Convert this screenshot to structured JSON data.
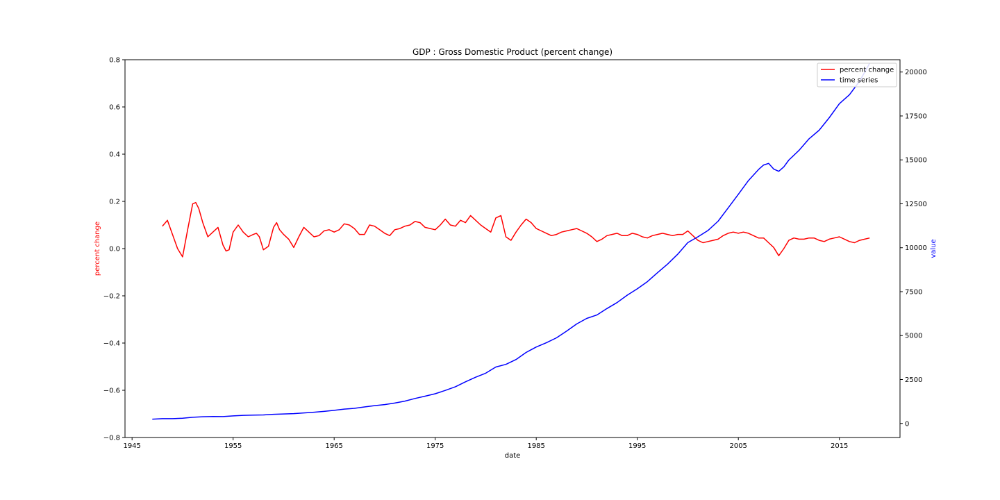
{
  "chart_data": {
    "type": "line",
    "title": "GDP :  Gross Domestic Product (percent change)",
    "xlabel": "date",
    "ylabel_left": "percent change",
    "ylabel_right": "value",
    "xlim": [
      1944.3,
      2021.0
    ],
    "ylim_left": [
      -0.8,
      0.8
    ],
    "ylim_right": [
      -800,
      20700
    ],
    "x_ticks": [
      1945,
      1955,
      1965,
      1975,
      1985,
      1995,
      2005,
      2015
    ],
    "y_left_ticks": [
      -0.8,
      -0.6,
      -0.4,
      -0.2,
      0.0,
      0.2,
      0.4,
      0.6,
      0.8
    ],
    "y_right_ticks": [
      0,
      2500,
      5000,
      7500,
      10000,
      12500,
      15000,
      17500,
      20000
    ],
    "x_tick_labels": [
      "1945",
      "1955",
      "1965",
      "1975",
      "1985",
      "1995",
      "2005",
      "2015"
    ],
    "y_left_tick_labels": [
      "−0.8",
      "−0.6",
      "−0.4",
      "−0.2",
      "0.0",
      "0.2",
      "0.4",
      "0.6",
      "0.8"
    ],
    "y_right_tick_labels": [
      "0",
      "2500",
      "5000",
      "7500",
      "10000",
      "12500",
      "15000",
      "17500",
      "20000"
    ],
    "grid": false,
    "legend_position": "top-right",
    "series": [
      {
        "name": "percent change",
        "axis": "left",
        "color": "#ff0000",
        "x": [
          1948.0,
          1948.5,
          1949.0,
          1949.5,
          1950.0,
          1950.5,
          1951.0,
          1951.3,
          1951.6,
          1952.0,
          1952.5,
          1953.0,
          1953.5,
          1954.0,
          1954.3,
          1954.6,
          1955.0,
          1955.5,
          1956.0,
          1956.5,
          1957.0,
          1957.3,
          1957.6,
          1958.0,
          1958.5,
          1959.0,
          1959.3,
          1959.6,
          1960.0,
          1960.5,
          1961.0,
          1961.5,
          1962.0,
          1962.5,
          1963.0,
          1963.5,
          1964.0,
          1964.5,
          1965.0,
          1965.5,
          1966.0,
          1966.5,
          1967.0,
          1967.5,
          1968.0,
          1968.5,
          1969.0,
          1969.5,
          1970.0,
          1970.5,
          1971.0,
          1971.5,
          1972.0,
          1972.5,
          1973.0,
          1973.5,
          1974.0,
          1974.5,
          1975.0,
          1975.5,
          1976.0,
          1976.5,
          1977.0,
          1977.5,
          1978.0,
          1978.5,
          1979.0,
          1979.5,
          1980.0,
          1980.5,
          1981.0,
          1981.5,
          1982.0,
          1982.5,
          1983.0,
          1983.5,
          1984.0,
          1984.5,
          1985.0,
          1985.5,
          1986.0,
          1986.5,
          1987.0,
          1987.5,
          1988.0,
          1988.5,
          1989.0,
          1989.5,
          1990.0,
          1990.5,
          1991.0,
          1991.5,
          1992.0,
          1992.5,
          1993.0,
          1993.5,
          1994.0,
          1994.5,
          1995.0,
          1995.5,
          1996.0,
          1996.5,
          1997.0,
          1997.5,
          1998.0,
          1998.5,
          1999.0,
          1999.5,
          2000.0,
          2000.5,
          2001.0,
          2001.5,
          2002.0,
          2002.5,
          2003.0,
          2003.5,
          2004.0,
          2004.5,
          2005.0,
          2005.5,
          2006.0,
          2006.5,
          2007.0,
          2007.5,
          2008.0,
          2008.5,
          2009.0,
          2009.5,
          2010.0,
          2010.5,
          2011.0,
          2011.5,
          2012.0,
          2012.5,
          2013.0,
          2013.5,
          2014.0,
          2014.5,
          2015.0,
          2015.5,
          2016.0,
          2016.5,
          2017.0,
          2017.5,
          2018.0
        ],
        "y": [
          0.095,
          0.12,
          0.06,
          0.0,
          -0.035,
          0.08,
          0.19,
          0.195,
          0.17,
          0.11,
          0.05,
          0.07,
          0.09,
          0.015,
          -0.01,
          -0.005,
          0.07,
          0.1,
          0.07,
          0.05,
          0.06,
          0.065,
          0.05,
          -0.005,
          0.01,
          0.09,
          0.11,
          0.08,
          0.06,
          0.04,
          0.005,
          0.05,
          0.09,
          0.07,
          0.05,
          0.055,
          0.075,
          0.08,
          0.07,
          0.08,
          0.105,
          0.1,
          0.085,
          0.06,
          0.06,
          0.1,
          0.095,
          0.08,
          0.065,
          0.055,
          0.08,
          0.085,
          0.095,
          0.1,
          0.115,
          0.11,
          0.09,
          0.085,
          0.08,
          0.1,
          0.125,
          0.1,
          0.095,
          0.12,
          0.11,
          0.14,
          0.12,
          0.1,
          0.085,
          0.07,
          0.13,
          0.14,
          0.05,
          0.035,
          0.07,
          0.1,
          0.125,
          0.11,
          0.085,
          0.075,
          0.065,
          0.055,
          0.06,
          0.07,
          0.075,
          0.08,
          0.085,
          0.075,
          0.065,
          0.05,
          0.03,
          0.04,
          0.055,
          0.06,
          0.065,
          0.055,
          0.055,
          0.065,
          0.06,
          0.05,
          0.045,
          0.055,
          0.06,
          0.065,
          0.06,
          0.055,
          0.06,
          0.06,
          0.075,
          0.055,
          0.035,
          0.025,
          0.03,
          0.035,
          0.04,
          0.055,
          0.065,
          0.07,
          0.065,
          0.07,
          0.065,
          0.055,
          0.045,
          0.045,
          0.025,
          0.005,
          -0.03,
          0.0,
          0.035,
          0.045,
          0.04,
          0.04,
          0.045,
          0.045,
          0.035,
          0.03,
          0.04,
          0.045,
          0.05,
          0.04,
          0.03,
          0.025,
          0.035,
          0.04,
          0.045
        ]
      },
      {
        "name": "time series",
        "axis": "right",
        "color": "#0000ff",
        "x": [
          1947.0,
          1948.0,
          1949.0,
          1950.0,
          1951.0,
          1952.0,
          1953.0,
          1954.0,
          1955.0,
          1956.0,
          1957.0,
          1958.0,
          1959.0,
          1960.0,
          1961.0,
          1962.0,
          1963.0,
          1964.0,
          1965.0,
          1966.0,
          1967.0,
          1968.0,
          1969.0,
          1970.0,
          1971.0,
          1972.0,
          1973.0,
          1974.0,
          1975.0,
          1976.0,
          1977.0,
          1978.0,
          1979.0,
          1980.0,
          1981.0,
          1982.0,
          1983.0,
          1984.0,
          1985.0,
          1986.0,
          1987.0,
          1988.0,
          1989.0,
          1990.0,
          1991.0,
          1992.0,
          1993.0,
          1994.0,
          1995.0,
          1996.0,
          1997.0,
          1998.0,
          1999.0,
          2000.0,
          2001.0,
          2002.0,
          2003.0,
          2004.0,
          2005.0,
          2006.0,
          2007.0,
          2007.5,
          2008.0,
          2008.5,
          2009.0,
          2009.5,
          2010.0,
          2011.0,
          2012.0,
          2013.0,
          2014.0,
          2015.0,
          2016.0,
          2017.0,
          2018.0
        ],
        "y": [
          243,
          270,
          272,
          300,
          350,
          380,
          395,
          390,
          430,
          460,
          475,
          485,
          520,
          540,
          560,
          600,
          640,
          685,
          745,
          815,
          860,
          940,
          1015,
          1075,
          1160,
          1270,
          1420,
          1550,
          1690,
          1880,
          2090,
          2370,
          2630,
          2860,
          3210,
          3360,
          3640,
          4040,
          4350,
          4590,
          4870,
          5250,
          5660,
          5980,
          6170,
          6540,
          6880,
          7300,
          7660,
          8070,
          8580,
          9070,
          9630,
          10290,
          10620,
          10980,
          11510,
          12270,
          13040,
          13820,
          14450,
          14710,
          14800,
          14480,
          14350,
          14600,
          14990,
          15540,
          16200,
          16690,
          17400,
          18200,
          18710,
          19480,
          20500
        ]
      }
    ]
  }
}
